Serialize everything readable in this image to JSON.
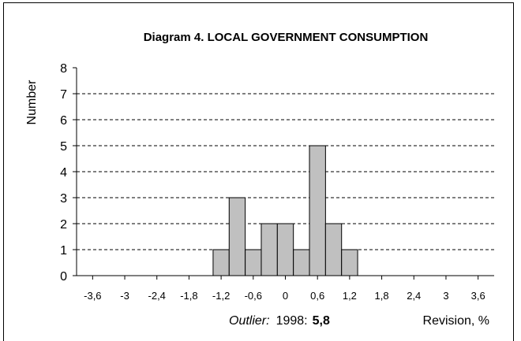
{
  "chart_data": {
    "type": "histogram",
    "title": "Diagram 4.  LOCAL GOVERNMENT CONSUMPTION",
    "y_label": "Number",
    "x_label": "Revision, %",
    "annotation": {
      "label": "Outlier:",
      "year": "1998:",
      "value": "5,8"
    },
    "bins": [
      -1.35,
      -1.05,
      -0.75,
      -0.45,
      -0.15,
      0.15,
      0.45,
      0.75,
      1.05,
      1.35
    ],
    "values": [
      1,
      3,
      1,
      2,
      2,
      1,
      5,
      2,
      1
    ],
    "color": "#c0c0c0",
    "xlim": [
      -3.9,
      3.9
    ],
    "xticks": [
      {
        "value": -3.6,
        "label": "-3,6"
      },
      {
        "value": -3,
        "label": "-3"
      },
      {
        "value": -2.4,
        "label": "-2,4"
      },
      {
        "value": -1.8,
        "label": "-1,8"
      },
      {
        "value": -1.2,
        "label": "-1,2"
      },
      {
        "value": -0.6,
        "label": "-0,6"
      },
      0,
      {
        "value": 0.6,
        "label": "0,6"
      },
      {
        "value": 1.2,
        "label": "1,2"
      },
      {
        "value": 1.8,
        "label": "1,8"
      },
      {
        "value": 2.4,
        "label": "2,4"
      },
      3,
      {
        "value": 3.6,
        "label": "3,6"
      }
    ],
    "ylim": [
      0,
      8
    ],
    "yticks": [
      0,
      1,
      2,
      3,
      4,
      5,
      6,
      7,
      8
    ],
    "grid": true
  }
}
